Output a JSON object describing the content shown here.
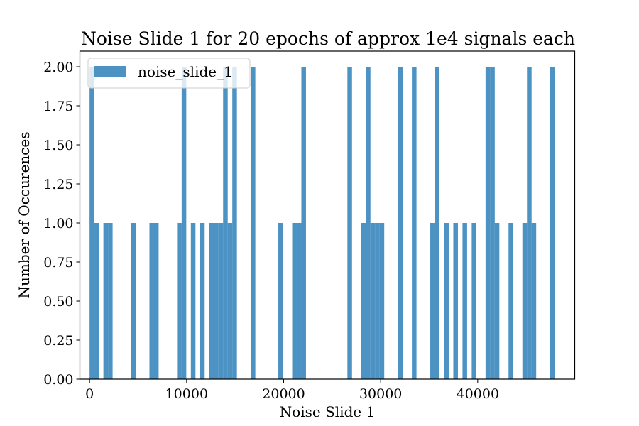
{
  "chart_data": {
    "type": "bar",
    "title": "Noise Slide 1 for 20 epochs of approx 1e4 signals each",
    "xlabel": "Noise Slide 1",
    "ylabel": "Number of Occurences",
    "xlim": [
      -1000,
      50000
    ],
    "ylim": [
      0,
      2.1
    ],
    "xticks": [
      0,
      10000,
      20000,
      30000,
      40000
    ],
    "xtick_labels": [
      "0",
      "10000",
      "20000",
      "30000",
      "40000"
    ],
    "yticks": [
      0,
      0.25,
      0.5,
      0.75,
      1.0,
      1.25,
      1.5,
      1.75,
      2.0
    ],
    "ytick_labels": [
      "0.00",
      "0.25",
      "0.50",
      "0.75",
      "1.00",
      "1.25",
      "1.50",
      "1.75",
      "2.00"
    ],
    "bin_start": 0,
    "bin_width": 474.5,
    "counts": [
      2,
      1,
      0,
      1,
      1,
      0,
      0,
      0,
      0,
      1,
      0,
      0,
      0,
      1,
      1,
      0,
      0,
      0,
      0,
      1,
      2,
      0,
      1,
      0,
      1,
      0,
      1,
      1,
      1,
      2,
      1,
      2,
      0,
      0,
      0,
      2,
      0,
      0,
      0,
      0,
      0,
      1,
      0,
      0,
      1,
      1,
      2,
      0,
      0,
      0,
      0,
      0,
      0,
      0,
      0,
      0,
      2,
      0,
      0,
      1,
      2,
      1,
      1,
      1,
      0,
      0,
      0,
      2,
      0,
      0,
      2,
      0,
      0,
      0,
      1,
      2,
      0,
      1,
      0,
      1,
      0,
      1,
      0,
      1,
      0,
      0,
      2,
      2,
      1,
      0,
      0,
      1,
      0,
      0,
      1,
      2,
      1,
      0,
      0,
      0,
      2
    ],
    "series": [
      {
        "name": "noise_slide_1",
        "color": "#1f77b4"
      }
    ],
    "legend_placement": "upper-left",
    "grid": false
  }
}
